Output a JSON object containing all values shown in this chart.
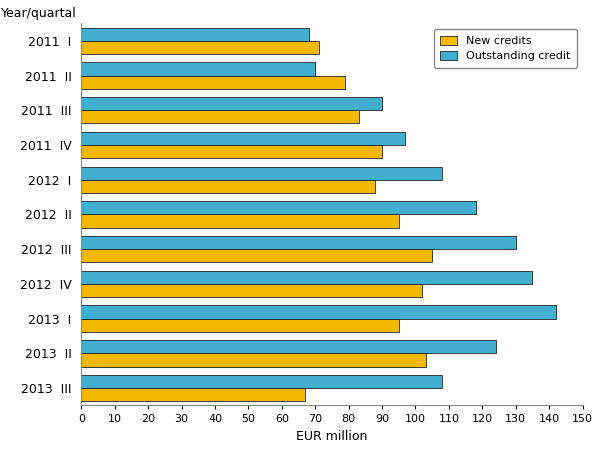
{
  "quarters": [
    "2011  I",
    "2011  II",
    "2011  III",
    "2011  IV",
    "2012  I",
    "2012  II",
    "2012  III",
    "2012  IV",
    "2013  I",
    "2013  II",
    "2013  III"
  ],
  "outstanding_credit": [
    68,
    70,
    90,
    97,
    108,
    118,
    130,
    135,
    142,
    124,
    108
  ],
  "new_credits": [
    71,
    79,
    83,
    90,
    88,
    95,
    105,
    102,
    95,
    103,
    67
  ],
  "outstanding_color": "#41B0D0",
  "new_credits_color": "#F5B800",
  "bar_edgecolor": "#222222",
  "xlim": [
    0,
    150
  ],
  "xticks": [
    0,
    10,
    20,
    30,
    40,
    50,
    60,
    70,
    80,
    90,
    100,
    110,
    120,
    130,
    140,
    150
  ],
  "xlabel": "EUR million",
  "ylabel": "Year/quartal",
  "legend_labels": [
    "Outstanding credit",
    "New credits"
  ],
  "bar_height": 0.38,
  "title": ""
}
